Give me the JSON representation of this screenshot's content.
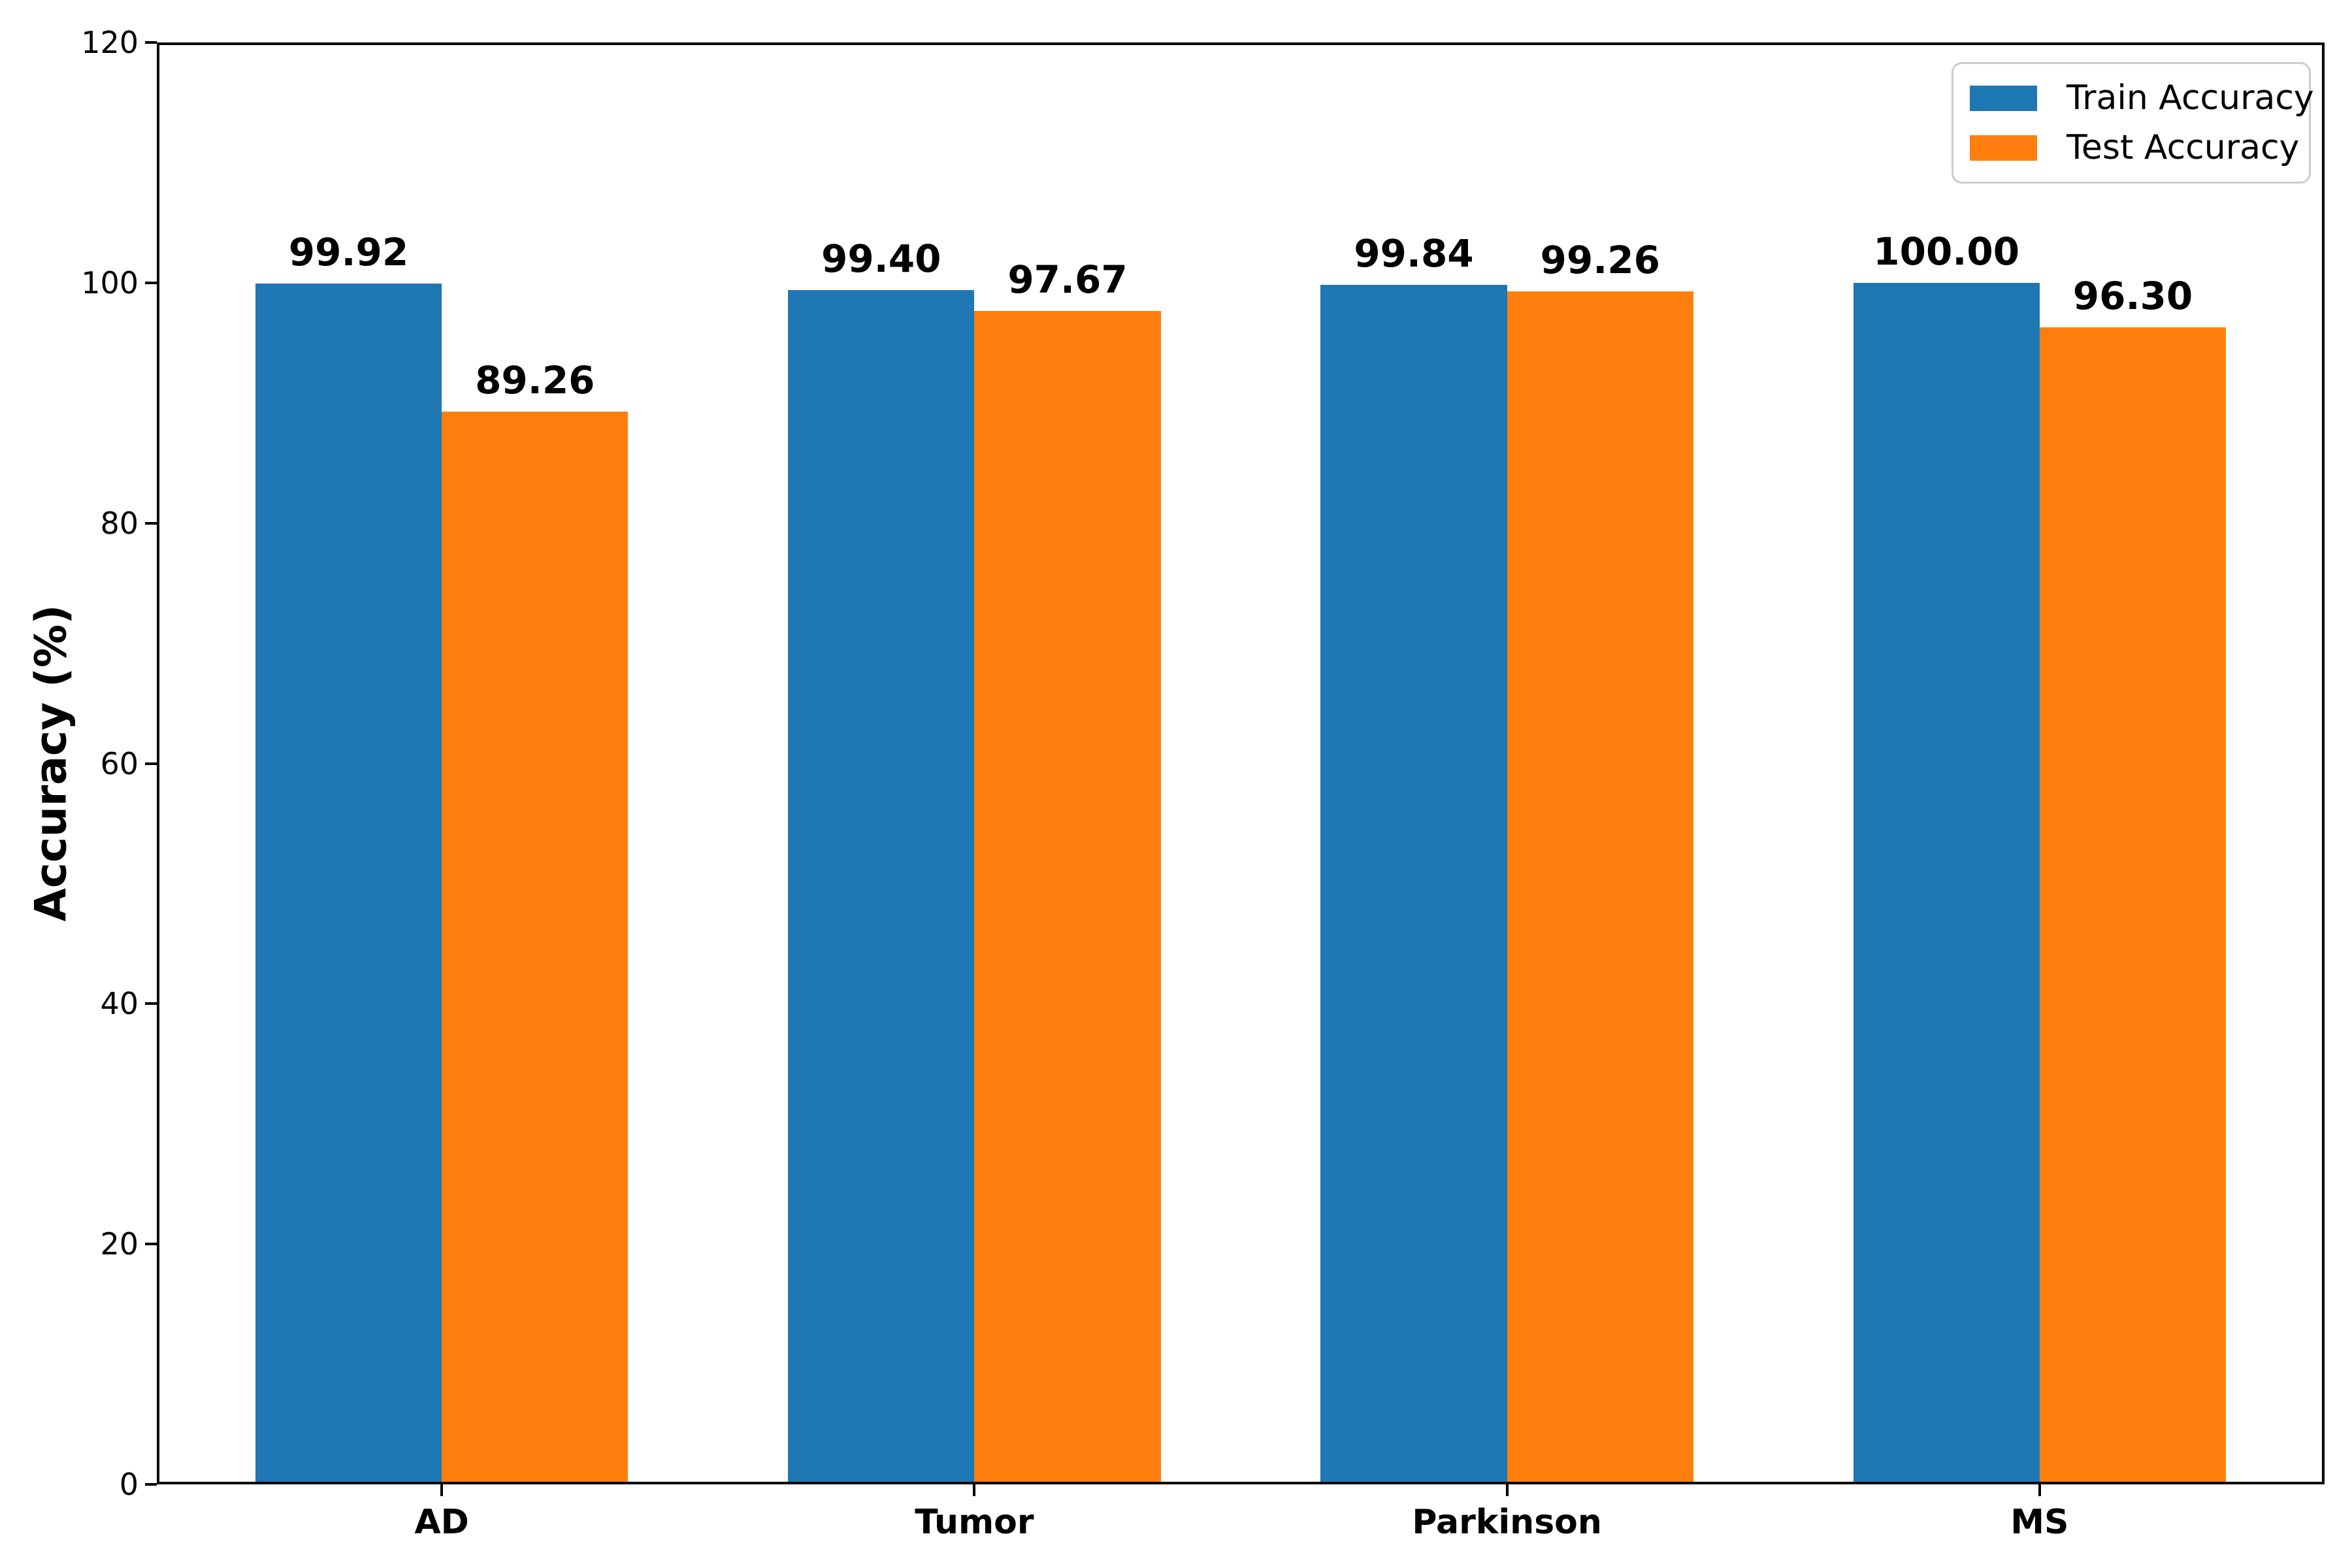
{
  "chart_data": {
    "type": "bar",
    "categories": [
      "AD",
      "Tumor",
      "Parkinson",
      "MS"
    ],
    "series": [
      {
        "name": "Train Accuracy",
        "color": "#1f77b4",
        "values": [
          99.92,
          99.4,
          99.84,
          100.0
        ],
        "labels": [
          "99.92",
          "99.40",
          "99.84",
          "100.00"
        ]
      },
      {
        "name": "Test Accuracy",
        "color": "#ff7f0e",
        "values": [
          89.26,
          97.67,
          99.26,
          96.3
        ],
        "labels": [
          "89.26",
          "97.67",
          "99.26",
          "96.30"
        ]
      }
    ],
    "title": "",
    "xlabel": "",
    "ylabel": "Accuracy (%)",
    "ylim": [
      0,
      120
    ],
    "yticks": [
      0,
      20,
      40,
      60,
      80,
      100,
      120
    ],
    "ytick_labels": [
      "0",
      "20",
      "40",
      "60",
      "80",
      "100",
      "120"
    ],
    "bar_width": 0.35,
    "grid": false,
    "legend_position": "upper right",
    "bar_label_format": "2-decimals"
  },
  "colors": {
    "axis": "#000000",
    "text": "#000000",
    "background": "#ffffff",
    "legend_border": "#cccccc"
  }
}
